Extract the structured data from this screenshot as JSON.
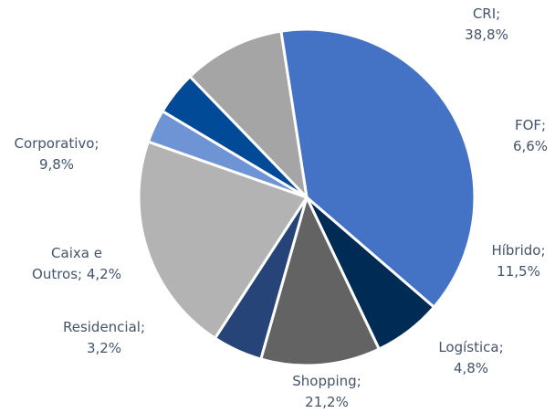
{
  "chart_data": {
    "type": "pie",
    "title": "",
    "slices": [
      {
        "name": "CRI",
        "value": 38.8,
        "label_line1": "CRI;",
        "label_line2": "38,8%",
        "color": "#4472c4"
      },
      {
        "name": "FOF",
        "value": 6.6,
        "label_line1": "FOF;",
        "label_line2": "6,6%",
        "color": "#002b54"
      },
      {
        "name": "Híbrido",
        "value": 11.5,
        "label_line1": "Híbrido;",
        "label_line2": "11,5%",
        "color": "#636363"
      },
      {
        "name": "Logística",
        "value": 4.8,
        "label_line1": "Logística;",
        "label_line2": "4,8%",
        "color": "#264478"
      },
      {
        "name": "Shopping",
        "value": 21.2,
        "label_line1": "Shopping;",
        "label_line2": "21,2%",
        "color": "#b3b3b3"
      },
      {
        "name": "Residencial",
        "value": 3.2,
        "label_line1": "Residencial;",
        "label_line2": "3,2%",
        "color": "#6f94d6"
      },
      {
        "name": "Caixa e Outros",
        "value": 4.2,
        "label_line1": "Caixa e",
        "label_line2": "Outros; 4,2%",
        "color": "#004a97"
      },
      {
        "name": "Corporativo",
        "value": 9.8,
        "label_line1": "Corporativo;",
        "label_line2": "9,8%",
        "color": "#a5a5a5"
      }
    ]
  }
}
